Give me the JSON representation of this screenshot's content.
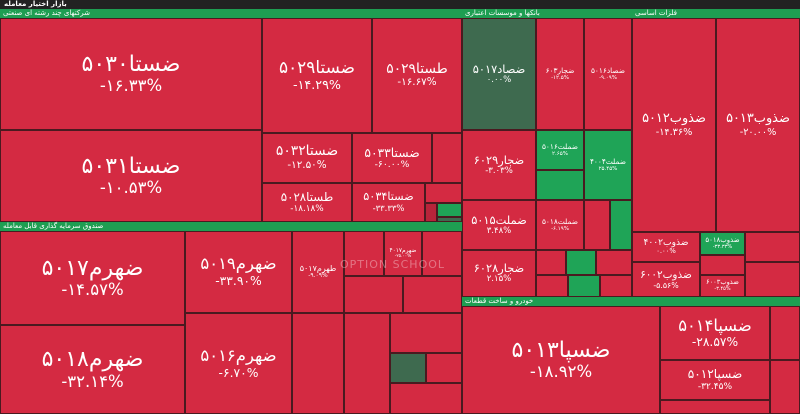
{
  "header": {
    "title": "بازار اختیار معامله"
  },
  "watermark": "OPTION SCHOOL",
  "sections": [
    {
      "title": "شرکتهای چند رشته ای صنعتی",
      "tiles": [
        {
          "name": "ضستا۵۰۳۰",
          "change": "-۱۶.۳۳%"
        },
        {
          "name": "ضستا۵۰۲۹",
          "change": "-۱۴.۲۹%"
        },
        {
          "name": "طستا۵۰۲۹",
          "change": "-۱۶.۶۷%"
        },
        {
          "name": "ضستا۵۰۳۱",
          "change": "-۱۰.۵۳%"
        },
        {
          "name": "ضستا۵۰۳۲",
          "change": "-۱۲.۵۰%"
        },
        {
          "name": "ضستا۵۰۳۳",
          "change": "-۶۰.۰۰%"
        },
        {
          "name": "طستا۵۰۲۸",
          "change": "-۱۸.۱۸%"
        },
        {
          "name": "ضستا۵۰۳۴",
          "change": "-۳۳.۳۳%"
        }
      ]
    },
    {
      "title": "بانکها و موسسات اعتباری",
      "tiles": [
        {
          "name": "ضصاد۵۰۱۷",
          "change": "۰.۰۰%"
        },
        {
          "name": "ضجار۶۰۳",
          "change": "-۱۲.۵%"
        },
        {
          "name": "ضصاد۵۰۱۶",
          "change": "-۹.۰۹%"
        },
        {
          "name": "ضجار۶۰۲۹",
          "change": "-۳.۰۳%"
        },
        {
          "name": "ضملت۵۰۱۶",
          "change": "۲.۶۵%"
        },
        {
          "name": "ضملت۴۰۰۴",
          "change": "۲۵.۴۵%"
        },
        {
          "name": "ضملت۵۰۱۵",
          "change": "۳.۴۸%"
        },
        {
          "name": "ضملت۵۰۱۸",
          "change": "-۶.۱۹%"
        },
        {
          "name": "ضجار۶۰۲۸",
          "change": "۲.۱۵%"
        }
      ]
    },
    {
      "title": "فلزات اساسی",
      "tiles": [
        {
          "name": "ضذوب۵۰۱۲",
          "change": "-۱۴.۳۶%"
        },
        {
          "name": "ضذوب۵۰۱۳",
          "change": "-۲۰.۰۰%"
        },
        {
          "name": "ضذوب۴۰۰۲",
          "change": "۰.۰۰%"
        },
        {
          "name": "ضذوب۵۰۱۸",
          "change": "-۳۳.۳۳%"
        },
        {
          "name": "ضذوب۶۰۰۲",
          "change": "-۵.۵۶%"
        },
        {
          "name": "ضذوب۶۰۰۳",
          "change": "-۳.۴۵%"
        }
      ]
    },
    {
      "title": "صندوق سرمایه گذاری قابل معامله",
      "tiles": [
        {
          "name": "ضهرم۵۰۱۷",
          "change": "-۱۴.۵۷%"
        },
        {
          "name": "ضهرم۵۰۱۸",
          "change": "-۳۲.۱۴%"
        },
        {
          "name": "ضهرم۵۰۱۹",
          "change": "-۳۳.۹۰%"
        },
        {
          "name": "ضهرم۵۰۱۶",
          "change": "-۶.۷۰%"
        },
        {
          "name": "طهرم۵۰۱۷",
          "change": "-۹.۰۹%"
        },
        {
          "name": "ضهرم۴۰۱۷",
          "change": "-۲۵.۰۰%"
        }
      ]
    },
    {
      "title": "خودرو و ساخت قطعات",
      "tiles": [
        {
          "name": "ضسپا۵۰۱۳",
          "change": "-۱۸.۹۲%"
        },
        {
          "name": "ضسپا۵۰۱۴",
          "change": "-۲۸.۵۷%"
        },
        {
          "name": "ضسپا۵۰۱۲",
          "change": "-۳۲.۴۵%"
        }
      ]
    }
  ]
}
